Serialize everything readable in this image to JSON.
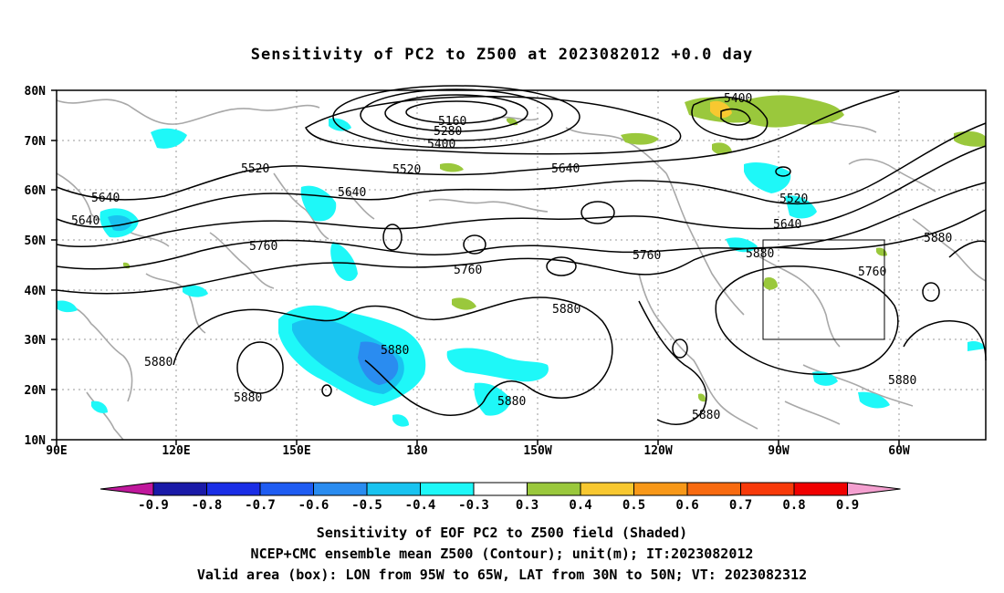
{
  "title": "Sensitivity of PC2 to Z500 at 2023082012 +0.0 day",
  "lat_labels": [
    "80N",
    "70N",
    "60N",
    "50N",
    "40N",
    "30N",
    "20N",
    "10N"
  ],
  "lon_labels": [
    "90E",
    "120E",
    "150E",
    "180",
    "150W",
    "120W",
    "90W",
    "60W"
  ],
  "contour_labels": [
    "5160",
    "5280",
    "5400",
    "5400",
    "5520",
    "5520",
    "5520",
    "5640",
    "5640",
    "5640",
    "5640",
    "5640",
    "5760",
    "5760",
    "5760",
    "5760",
    "5880",
    "5880",
    "5880",
    "5880",
    "5880",
    "5880",
    "5880",
    "5880",
    "5880"
  ],
  "colorbar": {
    "labels": [
      "-0.9",
      "-0.8",
      "-0.7",
      "-0.6",
      "-0.5",
      "-0.4",
      "-0.3",
      "0.3",
      "0.4",
      "0.5",
      "0.6",
      "0.7",
      "0.8",
      "0.9"
    ],
    "colors": [
      "#c0189c",
      "#1a1aa8",
      "#1a2ee6",
      "#1f5cf2",
      "#2a8cf0",
      "#19c3f0",
      "#1ef8f8",
      "#ffffff",
      "#9ac83c",
      "#f8c830",
      "#f89818",
      "#f86a10",
      "#f83a0a",
      "#f00000",
      "#f4a0d0"
    ]
  },
  "valid_box": {
    "lon_from": "95W",
    "lon_to": "65W",
    "lat_from": "30N",
    "lat_to": "50N"
  },
  "captions": [
    "Sensitivity of EOF PC2 to Z500 field (Shaded)",
    "NCEP+CMC ensemble mean Z500 (Contour); unit(m); IT:2023082012",
    "Valid area (box): LON from 95W to 65W, LAT from 30N to 50N; VT: 2023082312"
  ]
}
